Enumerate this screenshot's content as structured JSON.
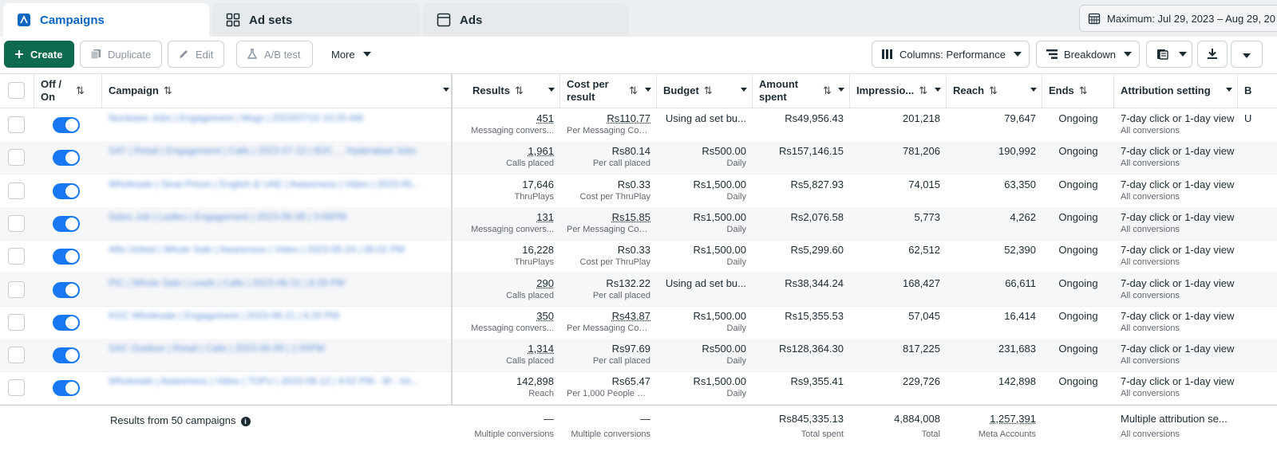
{
  "tabs": [
    {
      "label": "Campaigns",
      "icon": "campaigns-icon",
      "active": true
    },
    {
      "label": "Ad sets",
      "icon": "adsets-grid-icon",
      "active": false
    },
    {
      "label": "Ads",
      "icon": "ad-window-icon",
      "active": false
    }
  ],
  "date_range": {
    "label": "Maximum: Jul 29, 2023 – Aug 29, 20",
    "icon": "calendar-icon"
  },
  "toolbar": {
    "create": "Create",
    "duplicate": "Duplicate",
    "edit": "Edit",
    "ab_test": "A/B test",
    "more": "More",
    "columns": "Columns: Performance",
    "breakdown": "Breakdown"
  },
  "columns": {
    "off_on": "Off / On",
    "campaign": "Campaign",
    "results": "Results",
    "cost_per_result": "Cost per result",
    "budget": "Budget",
    "amount_spent": "Amount spent",
    "impressions": "Impressio...",
    "reach": "Reach",
    "ends": "Ends",
    "attribution": "Attribution setting",
    "next": "B"
  },
  "rows": [
    {
      "campaign": "Nuclease Jobs | Engagement | Msgs | 2023/07/10 10:25 AM",
      "results": "451",
      "results_sub": "Messaging convers...",
      "cost": "Rs110.77",
      "cost_sub": "Per Messaging Con...",
      "budget": "Using ad set bu...",
      "budget_sub": "",
      "spent": "Rs49,956.43",
      "impressions": "201,218",
      "reach": "79,647",
      "ends": "Ongoing",
      "attribution": "7-day click or 1-day view",
      "attribution_sub": "All conversions",
      "extra": "U"
    },
    {
      "campaign": "SAT | Retail | Engagement | Calls | 2023-07-22 | B2C ... Hyderabad Jobs",
      "results": "1,961",
      "results_sub": "Calls placed",
      "cost": "Rs80.14",
      "cost_sub": "Per call placed",
      "budget": "Rs500.00",
      "budget_sub": "Daily",
      "spent": "Rs157,146.15",
      "impressions": "781,206",
      "reach": "190,992",
      "ends": "Ongoing",
      "attribution": "7-day click or 1-day view",
      "attribution_sub": "All conversions",
      "extra": ""
    },
    {
      "campaign": "Wholesale | Sinai Prices | English & UAE | Awareness | Video | 2023-05...",
      "results": "17,646",
      "results_sub": "ThruPlays",
      "cost": "Rs0.33",
      "cost_sub": "Cost per ThruPlay",
      "budget": "Rs1,500.00",
      "budget_sub": "Daily",
      "spent": "Rs5,827.93",
      "impressions": "74,015",
      "reach": "63,350",
      "ends": "Ongoing",
      "attribution": "7-day click or 1-day view",
      "attribution_sub": "All conversions",
      "extra": ""
    },
    {
      "campaign": "Sales Job | Ladies | Engagement | 2023-06-08 | 3:06PM",
      "results": "131",
      "results_sub": "Messaging convers...",
      "cost": "Rs15.85",
      "cost_sub": "Per Messaging Con...",
      "budget": "Rs1,500.00",
      "budget_sub": "Daily",
      "spent": "Rs2,076.58",
      "impressions": "5,773",
      "reach": "4,262",
      "ends": "Ongoing",
      "attribution": "7-day click or 1-day view",
      "attribution_sub": "All conversions",
      "extra": ""
    },
    {
      "campaign": "Alfa United | Whole Sale | Awareness | Video | 2023-05-24 | 06:02 PM",
      "results": "16,228",
      "results_sub": "ThruPlays",
      "cost": "Rs0.33",
      "cost_sub": "Cost per ThruPlay",
      "budget": "Rs1,500.00",
      "budget_sub": "Daily",
      "spent": "Rs5,299.60",
      "impressions": "62,512",
      "reach": "52,390",
      "ends": "Ongoing",
      "attribution": "7-day click or 1-day view",
      "attribution_sub": "All conversions",
      "extra": ""
    },
    {
      "campaign": "PIC | Whole Sale | Leads | Calls | 2023-06-21 | 8:28 PM",
      "results": "290",
      "results_sub": "Calls placed",
      "cost": "Rs132.22",
      "cost_sub": "Per call placed",
      "budget": "Using ad set bu...",
      "budget_sub": "",
      "spent": "Rs38,344.24",
      "impressions": "168,427",
      "reach": "66,611",
      "ends": "Ongoing",
      "attribution": "7-day click or 1-day view",
      "attribution_sub": "All conversions",
      "extra": ""
    },
    {
      "campaign": "KGC Wholesale | Engagement | 2023-06-21 | 6:20 PM",
      "results": "350",
      "results_sub": "Messaging convers...",
      "cost": "Rs43.87",
      "cost_sub": "Per Messaging Con...",
      "budget": "Rs1,500.00",
      "budget_sub": "Daily",
      "spent": "Rs15,355.53",
      "impressions": "57,045",
      "reach": "16,414",
      "ends": "Ongoing",
      "attribution": "7-day click or 1-day view",
      "attribution_sub": "All conversions",
      "extra": ""
    },
    {
      "campaign": "SAC Outdoor | Retail | Calls | 2023-06-09 | 1:00PM",
      "results": "1,314",
      "results_sub": "Calls placed",
      "cost": "Rs97.69",
      "cost_sub": "Per call placed",
      "budget": "Rs500.00",
      "budget_sub": "Daily",
      "spent": "Rs128,364.30",
      "impressions": "817,225",
      "reach": "231,683",
      "ends": "Ongoing",
      "attribution": "7-day click or 1-day view",
      "attribution_sub": "All conversions",
      "extra": ""
    },
    {
      "campaign": "Wholesale | Awareness | Video | TOFU | 2023-08-12 | 4:02 PM - W - Int...",
      "results": "142,898",
      "results_sub": "Reach",
      "cost": "Rs65.47",
      "cost_sub": "Per 1,000 People R...",
      "budget": "Rs1,500.00",
      "budget_sub": "Daily",
      "spent": "Rs9,355.41",
      "impressions": "229,726",
      "reach": "142,898",
      "ends": "Ongoing",
      "attribution": "7-day click or 1-day view",
      "attribution_sub": "All conversions",
      "extra": ""
    }
  ],
  "underlined_results": [
    0,
    1,
    3,
    5,
    6,
    7
  ],
  "underlined_costs": [
    0,
    3,
    6
  ],
  "footer": {
    "summary": "Results from 50 campaigns",
    "results": "—",
    "results_sub": "Multiple conversions",
    "cost": "—",
    "cost_sub": "Multiple conversions",
    "spent": "Rs845,335.13",
    "spent_sub": "Total spent",
    "impressions": "4,884,008",
    "impressions_sub": "Total",
    "reach": "1,257,391",
    "reach_sub": "Meta Accounts",
    "attribution": "Multiple attribution se...",
    "attribution_sub": "All conversions"
  },
  "colors": {
    "accent": "#0a66c2",
    "create_button": "#0e6b4f",
    "toggle_on": "#1877f2"
  }
}
